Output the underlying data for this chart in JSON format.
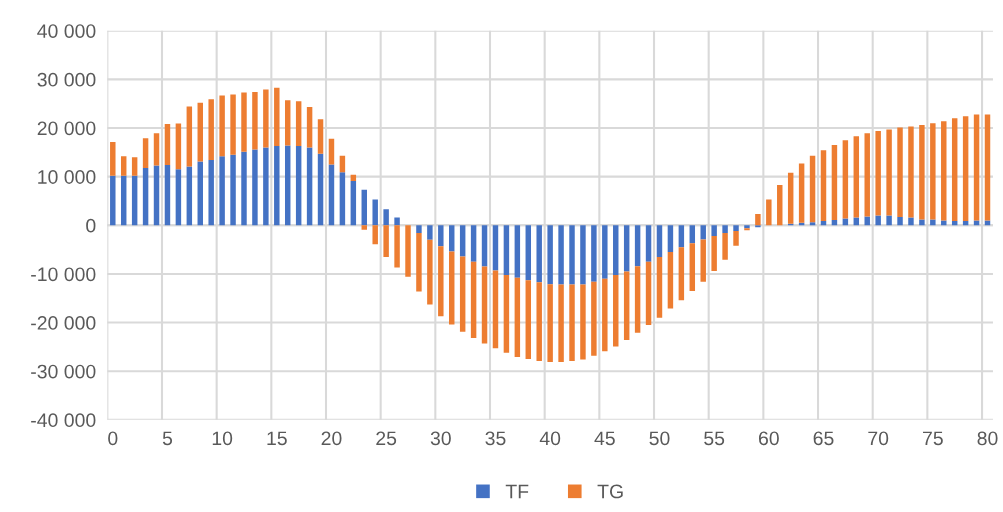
{
  "chart_data": {
    "type": "bar",
    "stacked": true,
    "categories": [
      "0",
      null,
      null,
      null,
      null,
      "5",
      null,
      null,
      null,
      null,
      "10",
      null,
      null,
      null,
      null,
      "15",
      null,
      null,
      null,
      null,
      "20",
      null,
      null,
      null,
      null,
      "25",
      null,
      null,
      null,
      null,
      "30",
      null,
      null,
      null,
      null,
      "35",
      null,
      null,
      null,
      null,
      "40",
      null,
      null,
      null,
      null,
      "45",
      null,
      null,
      null,
      null,
      "50",
      null,
      null,
      null,
      null,
      "55",
      null,
      null,
      null,
      null,
      "60",
      null,
      null,
      null,
      null,
      "65",
      null,
      null,
      null,
      null,
      "70",
      null,
      null,
      null,
      null,
      "75",
      null,
      null,
      null,
      null,
      "80"
    ],
    "series": [
      {
        "name": "TF",
        "color": "#4472c4",
        "values": [
          10200,
          10200,
          10200,
          11800,
          12300,
          12400,
          11500,
          12100,
          13100,
          13400,
          14200,
          14500,
          15100,
          15600,
          16000,
          16300,
          16400,
          16300,
          16000,
          14700,
          12500,
          10900,
          9100,
          7300,
          5300,
          3300,
          1600,
          0,
          -1600,
          -3000,
          -4300,
          -5400,
          -6400,
          -7500,
          -8500,
          -9300,
          -10200,
          -10800,
          -11300,
          -11700,
          -12100,
          -12200,
          -12200,
          -12200,
          -11600,
          -11000,
          -10200,
          -9500,
          -8400,
          -7500,
          -6500,
          -5500,
          -4500,
          -3700,
          -2900,
          -2200,
          -1600,
          -1200,
          -600,
          -400,
          0,
          0,
          300,
          500,
          600,
          900,
          1100,
          1400,
          1600,
          1800,
          2000,
          2000,
          1700,
          1600,
          1200,
          1200,
          1000,
          900,
          900,
          1000,
          1000
        ]
      },
      {
        "name": "TG",
        "color": "#ed7d31",
        "values": [
          6900,
          4000,
          3800,
          6100,
          6600,
          8400,
          9400,
          12300,
          12100,
          12500,
          12500,
          12400,
          12200,
          11800,
          11900,
          12000,
          9300,
          9200,
          8300,
          7100,
          5300,
          3400,
          1300,
          -900,
          -3900,
          -6500,
          -8700,
          -10600,
          -12000,
          -13300,
          -14400,
          -15000,
          -15500,
          -15700,
          -15800,
          -16000,
          -16000,
          -16300,
          -16200,
          -16200,
          -16000,
          -15900,
          -15700,
          -15400,
          -15200,
          -14900,
          -14700,
          -14100,
          -13700,
          -13000,
          -12500,
          -11600,
          -10900,
          -9800,
          -8700,
          -7200,
          -5500,
          -3000,
          -400,
          2300,
          5300,
          8300,
          10500,
          12200,
          13700,
          14500,
          15400,
          16100,
          16700,
          17100,
          17400,
          17700,
          18400,
          18700,
          19400,
          19800,
          20400,
          21100,
          21500,
          21800,
          21800
        ]
      }
    ],
    "ylim": [
      -40000,
      40000
    ],
    "yticks": [
      {
        "value": -40000,
        "label": "-40 000"
      },
      {
        "value": -30000,
        "label": "-30 000"
      },
      {
        "value": -20000,
        "label": "-20 000"
      },
      {
        "value": -10000,
        "label": "-10 000"
      },
      0,
      {
        "value": 10000,
        "label": "10 000"
      },
      {
        "value": 20000,
        "label": "20 000"
      },
      {
        "value": 30000,
        "label": "30 000"
      },
      {
        "value": 40000,
        "label": "40 000"
      }
    ],
    "grid": true,
    "legend": "bottom"
  }
}
